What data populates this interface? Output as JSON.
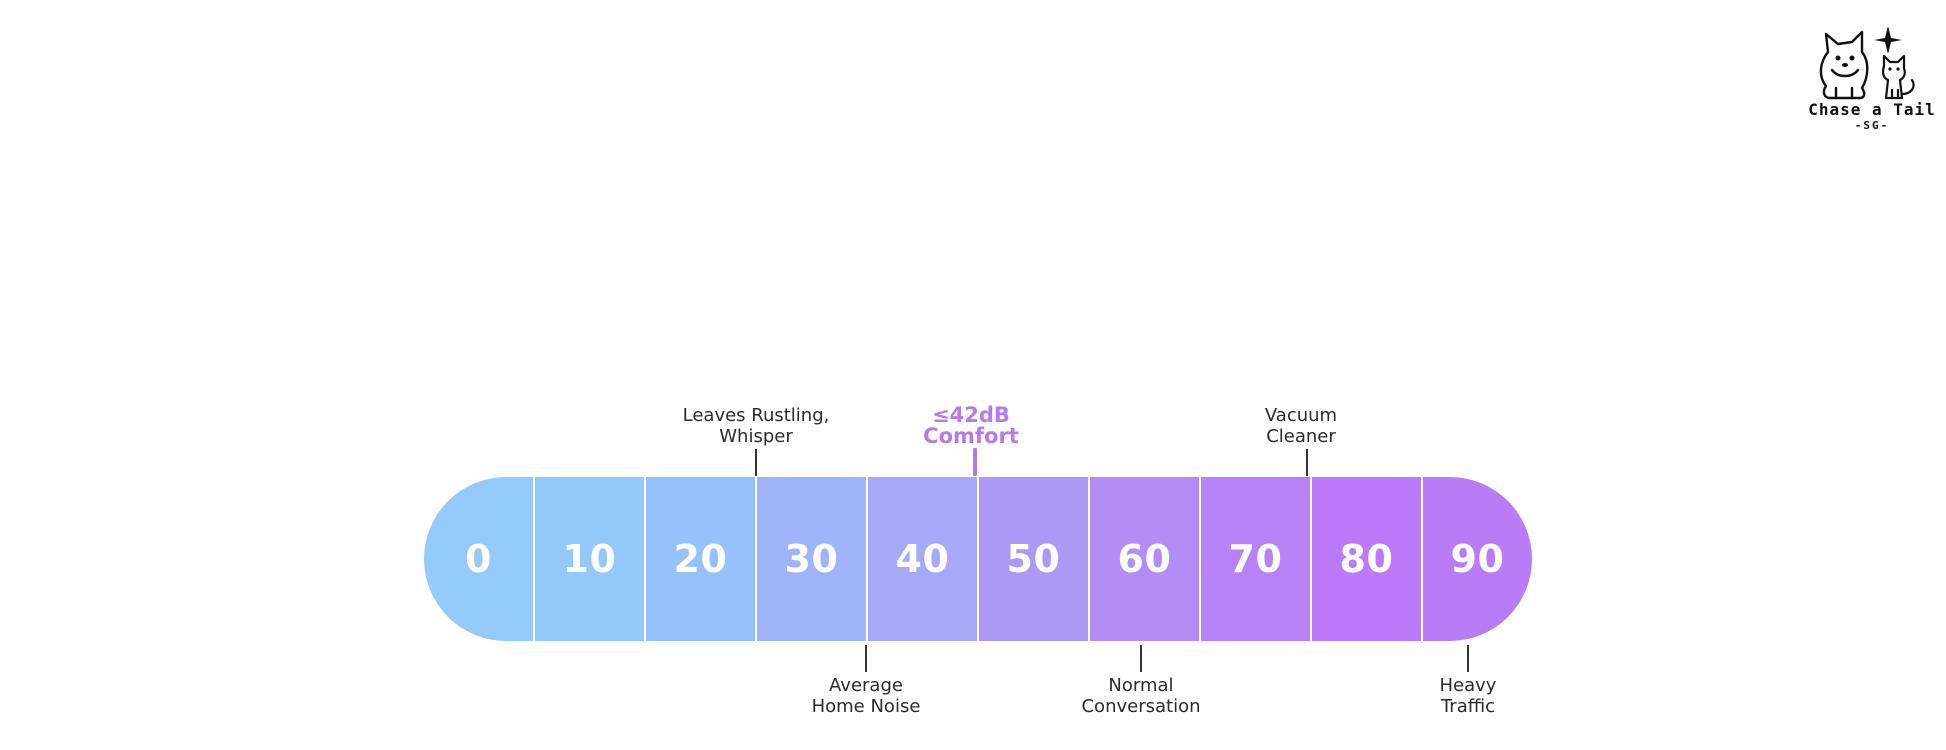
{
  "scale": {
    "segments": [
      {
        "value": "0",
        "color": "#94cbfb"
      },
      {
        "value": "10",
        "color": "#94c7fc"
      },
      {
        "value": "20",
        "color": "#96c2fc"
      },
      {
        "value": "30",
        "color": "#9fb4fa"
      },
      {
        "value": "40",
        "color": "#a6a8f8"
      },
      {
        "value": "50",
        "color": "#ae98f5"
      },
      {
        "value": "60",
        "color": "#b38cf5"
      },
      {
        "value": "70",
        "color": "#b882f7"
      },
      {
        "value": "80",
        "color": "#bb7af9"
      },
      {
        "value": "90",
        "color": "#b97cf6"
      }
    ]
  },
  "annotations": {
    "leaves": {
      "line1": "Leaves Rustling,",
      "line2": "Whisper"
    },
    "vacuum": {
      "line1": "Vacuum",
      "line2": "Cleaner"
    },
    "home": {
      "line1": "Average",
      "line2": "Home Noise"
    },
    "conversation": {
      "line1": "Normal",
      "line2": "Conversation"
    },
    "traffic": {
      "line1": "Heavy",
      "line2": "Traffic"
    }
  },
  "comfort": {
    "line1": "≤42dB",
    "line2": "Comfort",
    "color": "#b57bea"
  },
  "logo": {
    "name": "Chase a Tail",
    "sub": "-SG-"
  }
}
